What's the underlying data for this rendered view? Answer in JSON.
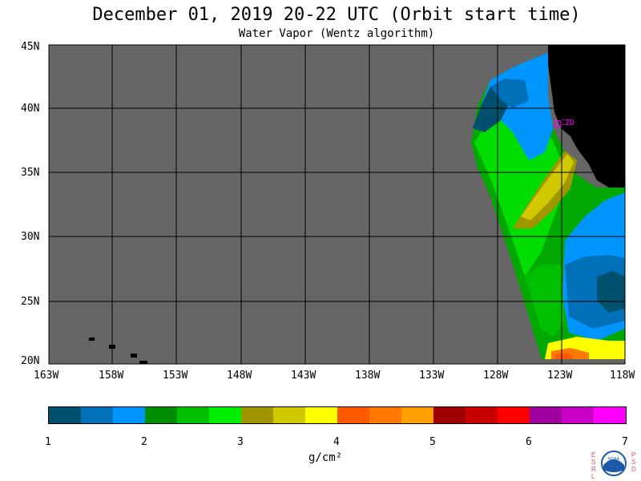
{
  "title": "December 01, 2019  20-22 UTC  (Orbit start time)",
  "subtitle": "Water Vapor (Wentz algorithm)",
  "lat_labels": [
    "45N",
    "40N",
    "35N",
    "30N",
    "25N",
    "20N"
  ],
  "lon_labels": [
    "163W",
    "158W",
    "153W",
    "148W",
    "143W",
    "138W",
    "133W",
    "128W",
    "123W",
    "118W"
  ],
  "station_label": "CZD",
  "colorbar": {
    "ticks": [
      "1",
      "2",
      "3",
      "4",
      "5",
      "6",
      "7"
    ],
    "units": "g/cm²",
    "colors": [
      "#00506e",
      "#0070b8",
      "#0095ff",
      "#008c00",
      "#00c000",
      "#00ee00",
      "#a09600",
      "#d2c800",
      "#ffff00",
      "#ff5a00",
      "#ff7800",
      "#ffa000",
      "#a00000",
      "#c80000",
      "#ff0000",
      "#a000a0",
      "#c800c8",
      "#ff00ff"
    ]
  },
  "logo": {
    "text": "NOAA",
    "left_letters": "ESRL",
    "right_letters": "PSD"
  },
  "colors": {
    "no_data": "#666666",
    "land": "#000000",
    "grid": "#000000"
  }
}
